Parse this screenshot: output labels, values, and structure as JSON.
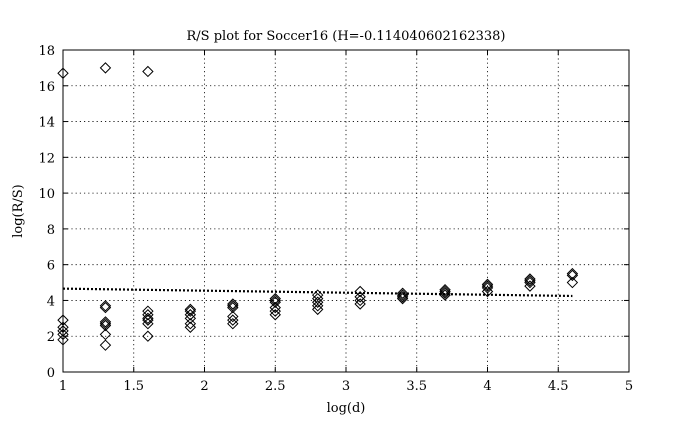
{
  "chart_data": {
    "type": "scatter",
    "title": "R/S plot for Soccer16 (H=-0.114040602162338)",
    "xlabel": "log(d)",
    "ylabel": "log(R/S)",
    "xlim": [
      1,
      5
    ],
    "ylim": [
      0,
      18
    ],
    "xticks": [
      1,
      1.5,
      2,
      2.5,
      3,
      3.5,
      4,
      4.5,
      5
    ],
    "xtick_labels": [
      "1",
      "1.5",
      "2",
      "2.5",
      "3",
      "3.5",
      "4",
      "4.5",
      "5"
    ],
    "yticks": [
      0,
      2,
      4,
      6,
      8,
      10,
      12,
      14,
      16,
      18
    ],
    "ytick_labels": [
      "0",
      "2",
      "4",
      "6",
      "8",
      "10",
      "12",
      "14",
      "16",
      "18"
    ],
    "grid": true,
    "marker": "diamond",
    "points": [
      [
        1.0,
        16.7
      ],
      [
        1.0,
        2.9
      ],
      [
        1.0,
        2.5
      ],
      [
        1.0,
        2.3
      ],
      [
        1.0,
        2.1
      ],
      [
        1.0,
        1.8
      ],
      [
        1.3,
        17.0
      ],
      [
        1.3,
        3.7
      ],
      [
        1.3,
        3.6
      ],
      [
        1.3,
        2.8
      ],
      [
        1.3,
        2.7
      ],
      [
        1.3,
        2.6
      ],
      [
        1.3,
        2.1
      ],
      [
        1.3,
        1.5
      ],
      [
        1.6,
        16.8
      ],
      [
        1.6,
        3.4
      ],
      [
        1.6,
        3.2
      ],
      [
        1.6,
        3.0
      ],
      [
        1.6,
        2.9
      ],
      [
        1.6,
        2.7
      ],
      [
        1.6,
        2.0
      ],
      [
        1.9,
        3.5
      ],
      [
        1.9,
        3.4
      ],
      [
        1.9,
        3.2
      ],
      [
        1.9,
        3.0
      ],
      [
        1.9,
        2.7
      ],
      [
        1.9,
        2.5
      ],
      [
        2.2,
        3.8
      ],
      [
        2.2,
        3.7
      ],
      [
        2.2,
        3.6
      ],
      [
        2.2,
        3.1
      ],
      [
        2.2,
        2.9
      ],
      [
        2.2,
        2.7
      ],
      [
        2.5,
        4.1
      ],
      [
        2.5,
        4.0
      ],
      [
        2.5,
        3.9
      ],
      [
        2.5,
        3.6
      ],
      [
        2.5,
        3.4
      ],
      [
        2.5,
        3.2
      ],
      [
        2.8,
        4.3
      ],
      [
        2.8,
        4.1
      ],
      [
        2.8,
        3.9
      ],
      [
        2.8,
        3.7
      ],
      [
        2.8,
        3.5
      ],
      [
        3.1,
        4.5
      ],
      [
        3.1,
        4.2
      ],
      [
        3.1,
        4.0
      ],
      [
        3.1,
        3.8
      ],
      [
        3.4,
        4.4
      ],
      [
        3.4,
        4.3
      ],
      [
        3.4,
        4.2
      ],
      [
        3.4,
        4.1
      ],
      [
        3.7,
        4.6
      ],
      [
        3.7,
        4.5
      ],
      [
        3.7,
        4.4
      ],
      [
        3.7,
        4.3
      ],
      [
        4.0,
        4.9
      ],
      [
        4.0,
        4.8
      ],
      [
        4.0,
        4.7
      ],
      [
        4.0,
        4.5
      ],
      [
        4.3,
        5.2
      ],
      [
        4.3,
        5.1
      ],
      [
        4.3,
        5.0
      ],
      [
        4.3,
        4.8
      ],
      [
        4.6,
        5.5
      ],
      [
        4.6,
        5.4
      ],
      [
        4.6,
        5.0
      ]
    ],
    "fit_line": {
      "x": [
        1.0,
        4.6
      ],
      "y": [
        4.66,
        4.25
      ],
      "style": "dotted"
    }
  }
}
